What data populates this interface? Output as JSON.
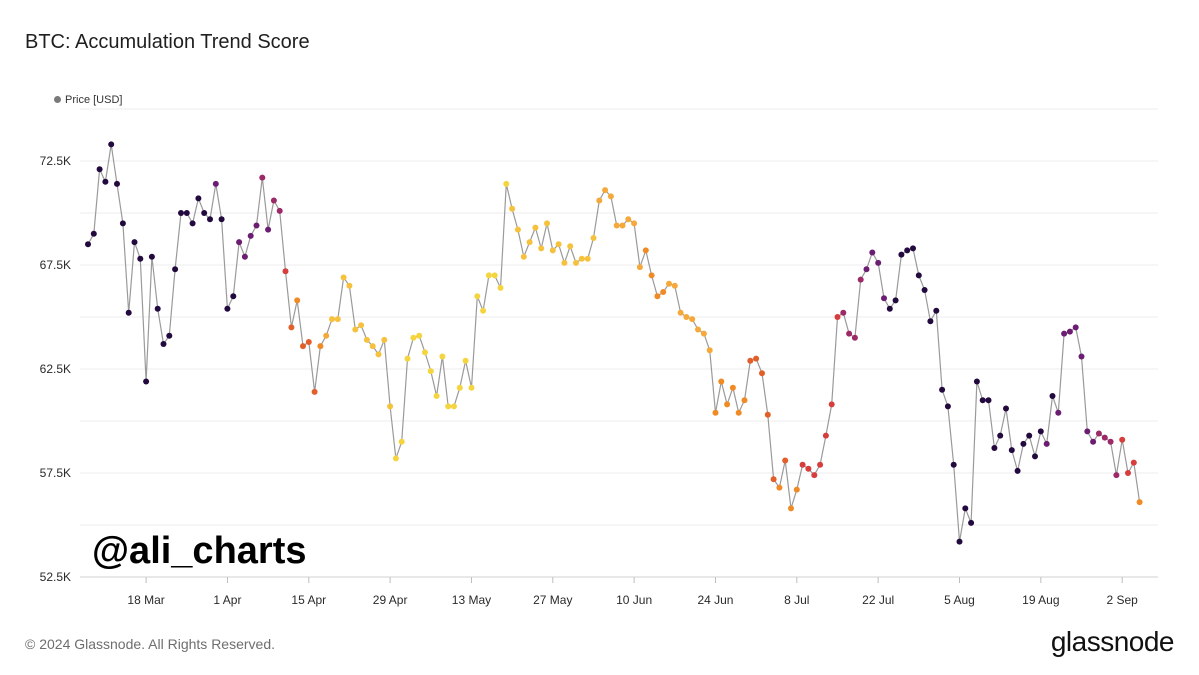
{
  "title": "BTC: Accumulation Trend Score",
  "footer": {
    "copyright": "© 2024 Glassnode. All Rights Reserved.",
    "brand": "glassnode"
  },
  "watermark": "@ali_charts",
  "chart_data": {
    "type": "line",
    "title": "BTC: Accumulation Trend Score",
    "legend": {
      "entries": [
        "Price [USD]"
      ],
      "position": "top-left"
    },
    "ylim": [
      52500,
      75000
    ],
    "xlim_day": [
      0,
      181
    ],
    "start_date": "2024-03-08",
    "x_ticks": [
      {
        "label": "18 Mar",
        "day": 10
      },
      {
        "label": "1 Apr",
        "day": 24
      },
      {
        "label": "15 Apr",
        "day": 38
      },
      {
        "label": "29 Apr",
        "day": 52
      },
      {
        "label": "13 May",
        "day": 66
      },
      {
        "label": "27 May",
        "day": 80
      },
      {
        "label": "10 Jun",
        "day": 94
      },
      {
        "label": "24 Jun",
        "day": 108
      },
      {
        "label": "8 Jul",
        "day": 122
      },
      {
        "label": "22 Jul",
        "day": 136
      },
      {
        "label": "5 Aug",
        "day": 150
      },
      {
        "label": "19 Aug",
        "day": 164
      },
      {
        "label": "2 Sep",
        "day": 178
      }
    ],
    "y_ticks": [
      {
        "label": "52.5K",
        "value": 52500
      },
      {
        "label": "57.5K",
        "value": 57500
      },
      {
        "label": "62.5K",
        "value": 62500
      },
      {
        "label": "67.5K",
        "value": 67500
      },
      {
        "label": "72.5K",
        "value": 72500
      }
    ],
    "grid": true,
    "line_color": "#9a9a9a",
    "series": [
      {
        "name": "Price [USD]",
        "y": [
          68500,
          69000,
          72100,
          71500,
          73300,
          71400,
          69500,
          65200,
          68600,
          67800,
          61900,
          67900,
          65400,
          63700,
          64100,
          67300,
          70000,
          70000,
          69500,
          70700,
          70000,
          69700,
          71400,
          69700,
          65400,
          66000,
          68600,
          67900,
          68900,
          69400,
          71700,
          69200,
          70600,
          70100,
          67200,
          64500,
          65800,
          63600,
          63800,
          61400,
          63600,
          64100,
          64900,
          64900,
          66900,
          66500,
          64400,
          64600,
          63900,
          63600,
          63200,
          63900,
          60700,
          58200,
          59000,
          63000,
          64000,
          64100,
          63300,
          62400,
          61200,
          63100,
          60700,
          60700,
          61600,
          62900,
          61600,
          66000,
          65300,
          67000,
          67000,
          66400,
          71400,
          70200,
          69200,
          67900,
          68600,
          69300,
          68300,
          69500,
          68200,
          68500,
          67600,
          68400,
          67600,
          67800,
          67800,
          68800,
          70600,
          71100,
          70800,
          69400,
          69400,
          69700,
          69500,
          67400,
          68200,
          67000,
          66000,
          66200,
          66600,
          66500,
          65200,
          65000,
          64900,
          64400,
          64200,
          63400,
          60400,
          61900,
          60800,
          61600,
          60400,
          61000,
          62900,
          63000,
          62300,
          60300,
          57200,
          56800,
          58100,
          55800,
          56700,
          57900,
          57700,
          57400,
          57900,
          59300,
          60800,
          65000,
          65200,
          64200,
          64000,
          66800,
          67300,
          68100,
          67600,
          65900,
          65400,
          65800,
          68000,
          68200,
          68300,
          67000,
          66300,
          64800,
          65300,
          61500,
          60700,
          57900,
          54200,
          55800,
          55100,
          61900,
          61000,
          61000,
          58700,
          59300,
          60600,
          58600,
          57600,
          58900,
          59300,
          58300,
          59500,
          58900,
          61200,
          60400,
          64200,
          64300,
          64500,
          63100,
          59500,
          59000,
          59400,
          59200,
          59000,
          57400,
          59100,
          57500,
          58000,
          56100
        ],
        "colors": [
          "#22093e",
          "#22093e",
          "#22093e",
          "#22093e",
          "#22093e",
          "#22093e",
          "#22093e",
          "#22093e",
          "#22093e",
          "#22093e",
          "#22093e",
          "#22093e",
          "#22093e",
          "#22093e",
          "#22093e",
          "#22093e",
          "#22093e",
          "#22093e",
          "#22093e",
          "#22093e",
          "#22093e",
          "#22093e",
          "#6b1d72",
          "#22093e",
          "#22093e",
          "#22093e",
          "#6b1d72",
          "#6b1d72",
          "#6b1d72",
          "#6b1d72",
          "#9b2a66",
          "#6b1d72",
          "#9b2a66",
          "#9b2a66",
          "#d63d3d",
          "#e35f2a",
          "#f08a24",
          "#e35f2a",
          "#e35f2a",
          "#e35f2a",
          "#f08a24",
          "#f5a93a",
          "#f6c13d",
          "#f6c13d",
          "#f6c13d",
          "#f6c13d",
          "#f6c13d",
          "#f6c13d",
          "#f6c13d",
          "#f6c13d",
          "#f6c13d",
          "#f6c13d",
          "#f6c13d",
          "#f5d53f",
          "#f5d53f",
          "#f5d53f",
          "#f5d53f",
          "#f5d53f",
          "#f5d53f",
          "#f5d53f",
          "#f5d53f",
          "#f5d53f",
          "#f5d53f",
          "#f5d53f",
          "#f5d53f",
          "#f5d53f",
          "#f5d53f",
          "#f5d53f",
          "#f5d53f",
          "#f5d53f",
          "#f5d53f",
          "#f5d53f",
          "#f5d53f",
          "#f6c13d",
          "#f6c13d",
          "#f6c13d",
          "#f6c13d",
          "#f6c13d",
          "#f6c13d",
          "#f6c13d",
          "#f6c13d",
          "#f6c13d",
          "#f6c13d",
          "#f6c13d",
          "#f6c13d",
          "#f6c13d",
          "#f6c13d",
          "#f6c13d",
          "#f5a93a",
          "#f5a93a",
          "#f5a93a",
          "#f5a93a",
          "#f5a93a",
          "#f5a93a",
          "#f5a93a",
          "#f5a93a",
          "#f08a24",
          "#f08a24",
          "#f08a24",
          "#f08a24",
          "#f5a93a",
          "#f5a93a",
          "#f5a93a",
          "#f5a93a",
          "#f5a93a",
          "#f5a93a",
          "#f5a93a",
          "#f5a93a",
          "#f08a24",
          "#f08a24",
          "#f08a24",
          "#f08a24",
          "#f08a24",
          "#f08a24",
          "#e35f2a",
          "#e35f2a",
          "#e35f2a",
          "#e35f2a",
          "#e35f2a",
          "#f08a24",
          "#e35f2a",
          "#f08a24",
          "#f08a24",
          "#d63d3d",
          "#d63d3d",
          "#d63d3d",
          "#d63d3d",
          "#d63d3d",
          "#d63d3d",
          "#d63d3d",
          "#9b2a66",
          "#9b2a66",
          "#9b2a66",
          "#9b2a66",
          "#6b1d72",
          "#6b1d72",
          "#6b1d72",
          "#6b1d72",
          "#22093e",
          "#22093e",
          "#22093e",
          "#22093e",
          "#22093e",
          "#22093e",
          "#22093e",
          "#22093e",
          "#22093e",
          "#22093e",
          "#22093e",
          "#22093e",
          "#22093e",
          "#22093e",
          "#22093e",
          "#22093e",
          "#22093e",
          "#22093e",
          "#22093e",
          "#22093e",
          "#22093e",
          "#22093e",
          "#22093e",
          "#22093e",
          "#22093e",
          "#22093e",
          "#22093e",
          "#6b1d72",
          "#22093e",
          "#6b1d72",
          "#6b1d72",
          "#6b1d72",
          "#6b1d72",
          "#6b1d72",
          "#6b1d72",
          "#6b1d72",
          "#9b2a66",
          "#9b2a66",
          "#9b2a66",
          "#9b2a66",
          "#d63d3d",
          "#d63d3d",
          "#d63d3d",
          "#f08a24",
          "#f08a24",
          "#f08a24",
          "#f5a93a"
        ]
      }
    ]
  }
}
